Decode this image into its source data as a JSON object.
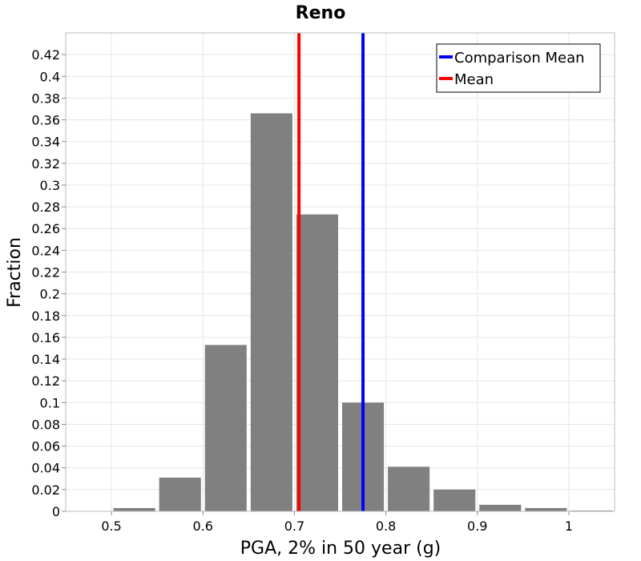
{
  "chart_data": {
    "type": "bar",
    "title": "Reno",
    "xlabel": "PGA, 2% in 50 year (g)",
    "ylabel": "Fraction",
    "xlim": [
      0.45,
      1.05
    ],
    "ylim": [
      0,
      0.44
    ],
    "x_ticks": [
      "0.5",
      "0.6",
      "0.7",
      "0.8",
      "0.9",
      "1"
    ],
    "y_ticks": [
      "0",
      "0.02",
      "0.04",
      "0.06",
      "0.08",
      "0.1",
      "0.12",
      "0.14",
      "0.16",
      "0.18",
      "0.2",
      "0.22",
      "0.24",
      "0.26",
      "0.28",
      "0.3",
      "0.32",
      "0.34",
      "0.36",
      "0.38",
      "0.4",
      "0.42"
    ],
    "bin_width": 0.05,
    "bins": [
      {
        "x": 0.475,
        "value": 0.0
      },
      {
        "x": 0.525,
        "value": 0.003
      },
      {
        "x": 0.575,
        "value": 0.031
      },
      {
        "x": 0.625,
        "value": 0.153
      },
      {
        "x": 0.675,
        "value": 0.366
      },
      {
        "x": 0.725,
        "value": 0.273
      },
      {
        "x": 0.775,
        "value": 0.1
      },
      {
        "x": 0.825,
        "value": 0.041
      },
      {
        "x": 0.875,
        "value": 0.02
      },
      {
        "x": 0.925,
        "value": 0.006
      },
      {
        "x": 0.975,
        "value": 0.003
      },
      {
        "x": 1.025,
        "value": 0.0005
      }
    ],
    "bar_color": "#808080",
    "reference_lines": [
      {
        "name": "Comparison Mean",
        "x": 0.775,
        "color": "#0000ff"
      },
      {
        "name": "Mean",
        "x": 0.705,
        "color": "#ff0000"
      }
    ],
    "legend_position": "top-right",
    "grid": true
  }
}
